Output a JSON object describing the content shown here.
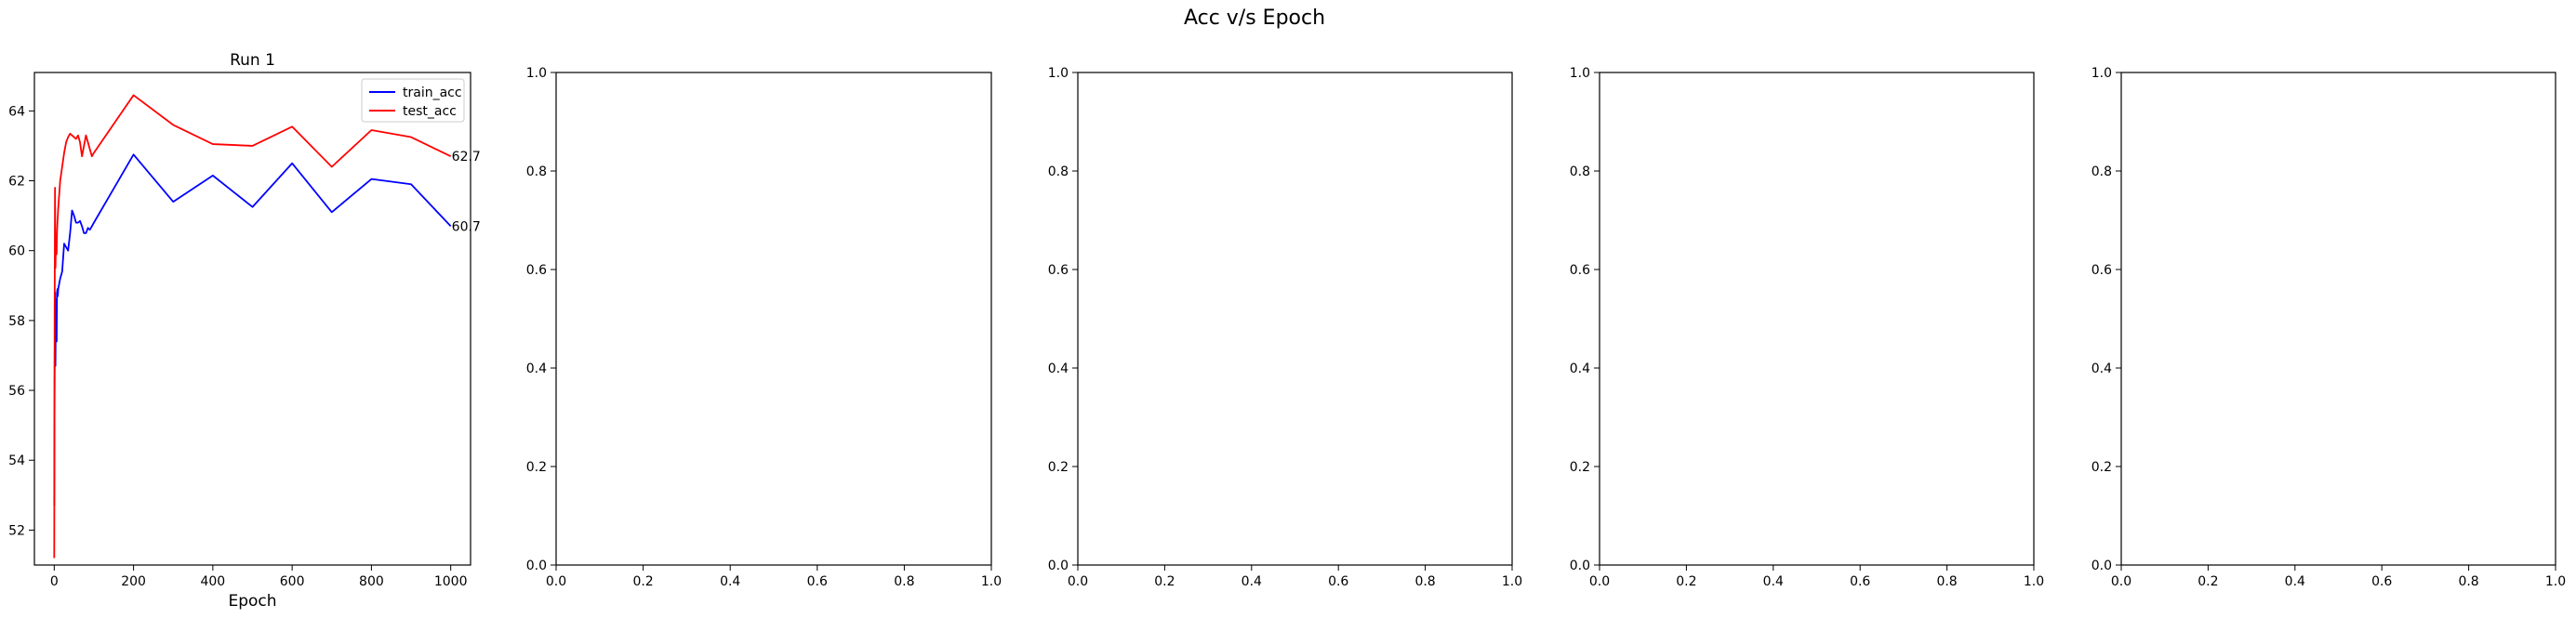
{
  "figure": {
    "suptitle": "Acc v/s Epoch"
  },
  "chart_data": [
    {
      "type": "line",
      "title": "Run 1",
      "xlabel": "Epoch",
      "ylabel": "",
      "xlim": [
        -50,
        1050
      ],
      "ylim": [
        51.0,
        65.1
      ],
      "xticks": [
        0,
        200,
        400,
        600,
        800,
        1000
      ],
      "yticks": [
        52,
        54,
        56,
        58,
        60,
        62,
        64
      ],
      "legend": "top-right",
      "grid": false,
      "series": [
        {
          "name": "train_acc",
          "color": "#0000ff",
          "x": [
            0,
            1,
            2,
            3,
            4,
            5,
            6,
            7,
            8,
            9,
            10,
            15,
            20,
            25,
            30,
            35,
            40,
            45,
            50,
            55,
            60,
            65,
            70,
            75,
            80,
            85,
            90,
            95,
            100,
            200,
            300,
            400,
            500,
            600,
            700,
            800,
            900,
            1000
          ],
          "y": [
            52.7,
            56.4,
            58.8,
            56.7,
            58.4,
            58.6,
            57.4,
            58.8,
            58.9,
            58.7,
            58.9,
            59.2,
            59.4,
            60.2,
            60.1,
            60.0,
            60.5,
            61.15,
            61.0,
            60.8,
            60.8,
            60.85,
            60.7,
            60.5,
            60.5,
            60.65,
            60.6,
            60.7,
            60.8,
            62.75,
            61.4,
            62.15,
            61.25,
            62.5,
            61.1,
            62.05,
            61.9,
            60.7
          ]
        },
        {
          "name": "test_acc",
          "color": "#ff0000",
          "x": [
            0,
            1,
            2,
            3,
            4,
            5,
            6,
            7,
            8,
            9,
            10,
            15,
            20,
            25,
            30,
            35,
            40,
            45,
            50,
            55,
            60,
            65,
            70,
            75,
            80,
            85,
            90,
            95,
            100,
            200,
            300,
            400,
            500,
            600,
            700,
            800,
            900,
            1000
          ],
          "y": [
            51.2,
            58.0,
            61.8,
            59.5,
            60.0,
            60.2,
            59.9,
            60.5,
            60.8,
            61.0,
            61.2,
            62.0,
            62.4,
            62.8,
            63.1,
            63.25,
            63.35,
            63.3,
            63.25,
            63.2,
            63.3,
            63.1,
            62.7,
            63.0,
            63.3,
            63.1,
            62.9,
            62.7,
            62.8,
            64.45,
            63.6,
            63.05,
            63.0,
            63.55,
            62.4,
            63.45,
            63.25,
            62.7
          ]
        }
      ],
      "end_labels": [
        "60.7",
        "62.7"
      ]
    },
    {
      "type": "line",
      "xlim": [
        0.0,
        1.0
      ],
      "ylim": [
        0.0,
        1.0
      ],
      "xticks": [
        "0.0",
        "0.2",
        "0.4",
        "0.6",
        "0.8",
        "1.0"
      ],
      "yticks": [
        "0.0",
        "0.2",
        "0.4",
        "0.6",
        "0.8",
        "1.0"
      ],
      "series": []
    },
    {
      "type": "line",
      "xlim": [
        0.0,
        1.0
      ],
      "ylim": [
        0.0,
        1.0
      ],
      "xticks": [
        "0.0",
        "0.2",
        "0.4",
        "0.6",
        "0.8",
        "1.0"
      ],
      "yticks": [
        "0.0",
        "0.2",
        "0.4",
        "0.6",
        "0.8",
        "1.0"
      ],
      "series": []
    },
    {
      "type": "line",
      "xlim": [
        0.0,
        1.0
      ],
      "ylim": [
        0.0,
        1.0
      ],
      "xticks": [
        "0.0",
        "0.2",
        "0.4",
        "0.6",
        "0.8",
        "1.0"
      ],
      "yticks": [
        "0.0",
        "0.2",
        "0.4",
        "0.6",
        "0.8",
        "1.0"
      ],
      "series": []
    },
    {
      "type": "line",
      "xlim": [
        0.0,
        1.0
      ],
      "ylim": [
        0.0,
        1.0
      ],
      "xticks": [
        "0.0",
        "0.2",
        "0.4",
        "0.6",
        "0.8",
        "1.0"
      ],
      "yticks": [
        "0.0",
        "0.2",
        "0.4",
        "0.6",
        "0.8",
        "1.0"
      ],
      "series": []
    }
  ]
}
